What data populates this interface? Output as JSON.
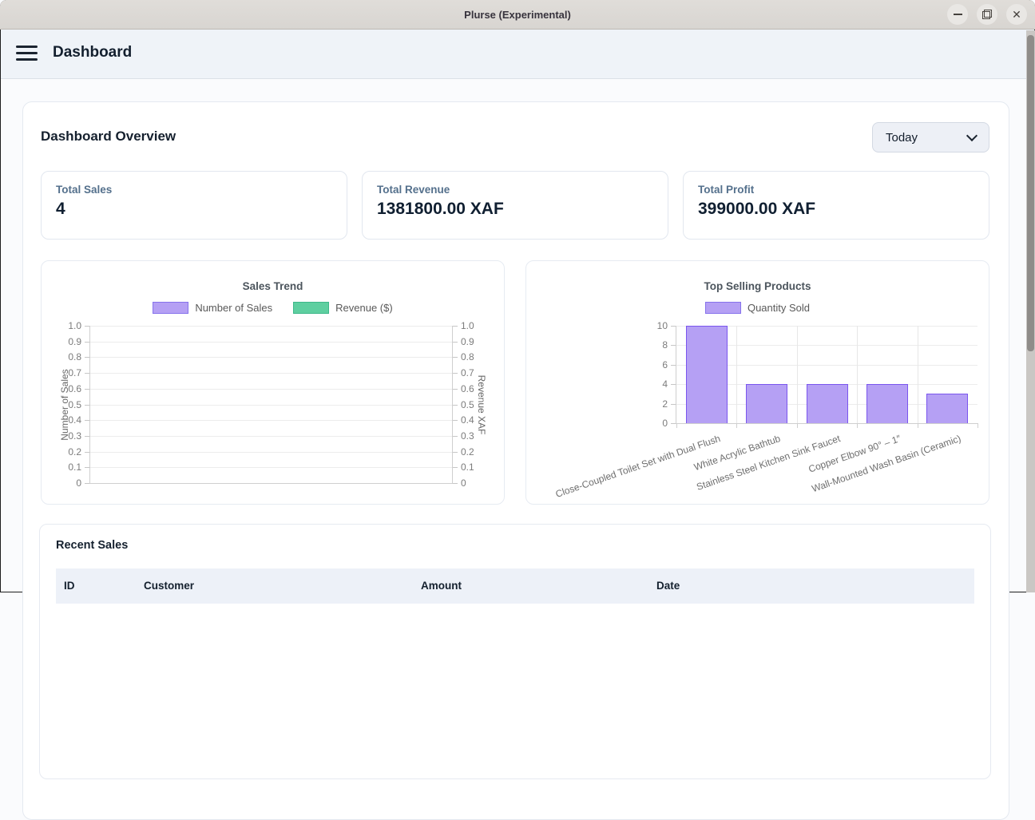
{
  "window": {
    "title": "Plurse (Experimental)",
    "icons": {
      "minimize": "–",
      "restore": "❐",
      "close": "✕"
    }
  },
  "header": {
    "title": "Dashboard"
  },
  "overview": {
    "title": "Dashboard Overview",
    "period_selector": {
      "value": "Today"
    },
    "stats": [
      {
        "label": "Total Sales",
        "value": "4"
      },
      {
        "label": "Total Revenue",
        "value": "1381800.00 XAF"
      },
      {
        "label": "Total Profit",
        "value": "399000.00 XAF"
      }
    ]
  },
  "recent_sales": {
    "title": "Recent Sales",
    "columns": [
      "ID",
      "Customer",
      "Amount",
      "Date"
    ],
    "rows": []
  },
  "colors": {
    "purple_fill": "#b5a0f4",
    "purple_border": "#7a55ee",
    "green_fill": "#5ecfa0",
    "green_border": "#3db88a",
    "header_bg": "#eff3f8",
    "card_border": "#e2e7ef",
    "table_head_bg": "#edf1f8"
  },
  "chart_data": [
    {
      "type": "line",
      "title": "Sales Trend",
      "legend_position": "top",
      "legend": [
        {
          "label": "Number of Sales",
          "fill": "#b5a0f4",
          "border": "#8673ec"
        },
        {
          "label": "Revenue ($)",
          "fill": "#5ecfa0",
          "border": "#3db88a"
        }
      ],
      "x": [],
      "series": [
        {
          "name": "Number of Sales",
          "axis": "left",
          "values": []
        },
        {
          "name": "Revenue ($)",
          "axis": "right",
          "values": []
        }
      ],
      "axes": {
        "left": {
          "title": "Number of Sales",
          "min": 0,
          "max": 1.0,
          "step": 0.1,
          "ticks": [
            "1.0",
            "0.9",
            "0.8",
            "0.7",
            "0.6",
            "0.5",
            "0.4",
            "0.3",
            "0.2",
            "0.1",
            "0"
          ]
        },
        "right": {
          "title": "Revenue XAF",
          "min": 0,
          "max": 1.0,
          "step": 0.1,
          "ticks": [
            "1.0",
            "0.9",
            "0.8",
            "0.7",
            "0.6",
            "0.5",
            "0.4",
            "0.3",
            "0.2",
            "0.1",
            "0"
          ]
        }
      },
      "grid": true,
      "empty": true
    },
    {
      "type": "bar",
      "title": "Top Selling Products",
      "legend_position": "top",
      "legend": [
        {
          "label": "Quantity Sold",
          "fill": "#b5a0f4",
          "border": "#8673ec"
        }
      ],
      "categories": [
        "Close-Coupled Toilet Set with Dual Flush",
        "White Acrylic Bathtub",
        "Stainless Steel Kitchen Sink Faucet",
        "Copper Elbow 90° – 1″",
        "Wall-Mounted Wash Basin (Ceramic)"
      ],
      "values": [
        10,
        4,
        4,
        4,
        3
      ],
      "ylabel": "",
      "ylim": [
        0,
        10
      ],
      "yticks": [
        "10",
        "8",
        "6",
        "4",
        "2",
        "0"
      ],
      "bar_fill": "#b5a0f4",
      "bar_border": "#7a55ee",
      "grid": true
    }
  ]
}
